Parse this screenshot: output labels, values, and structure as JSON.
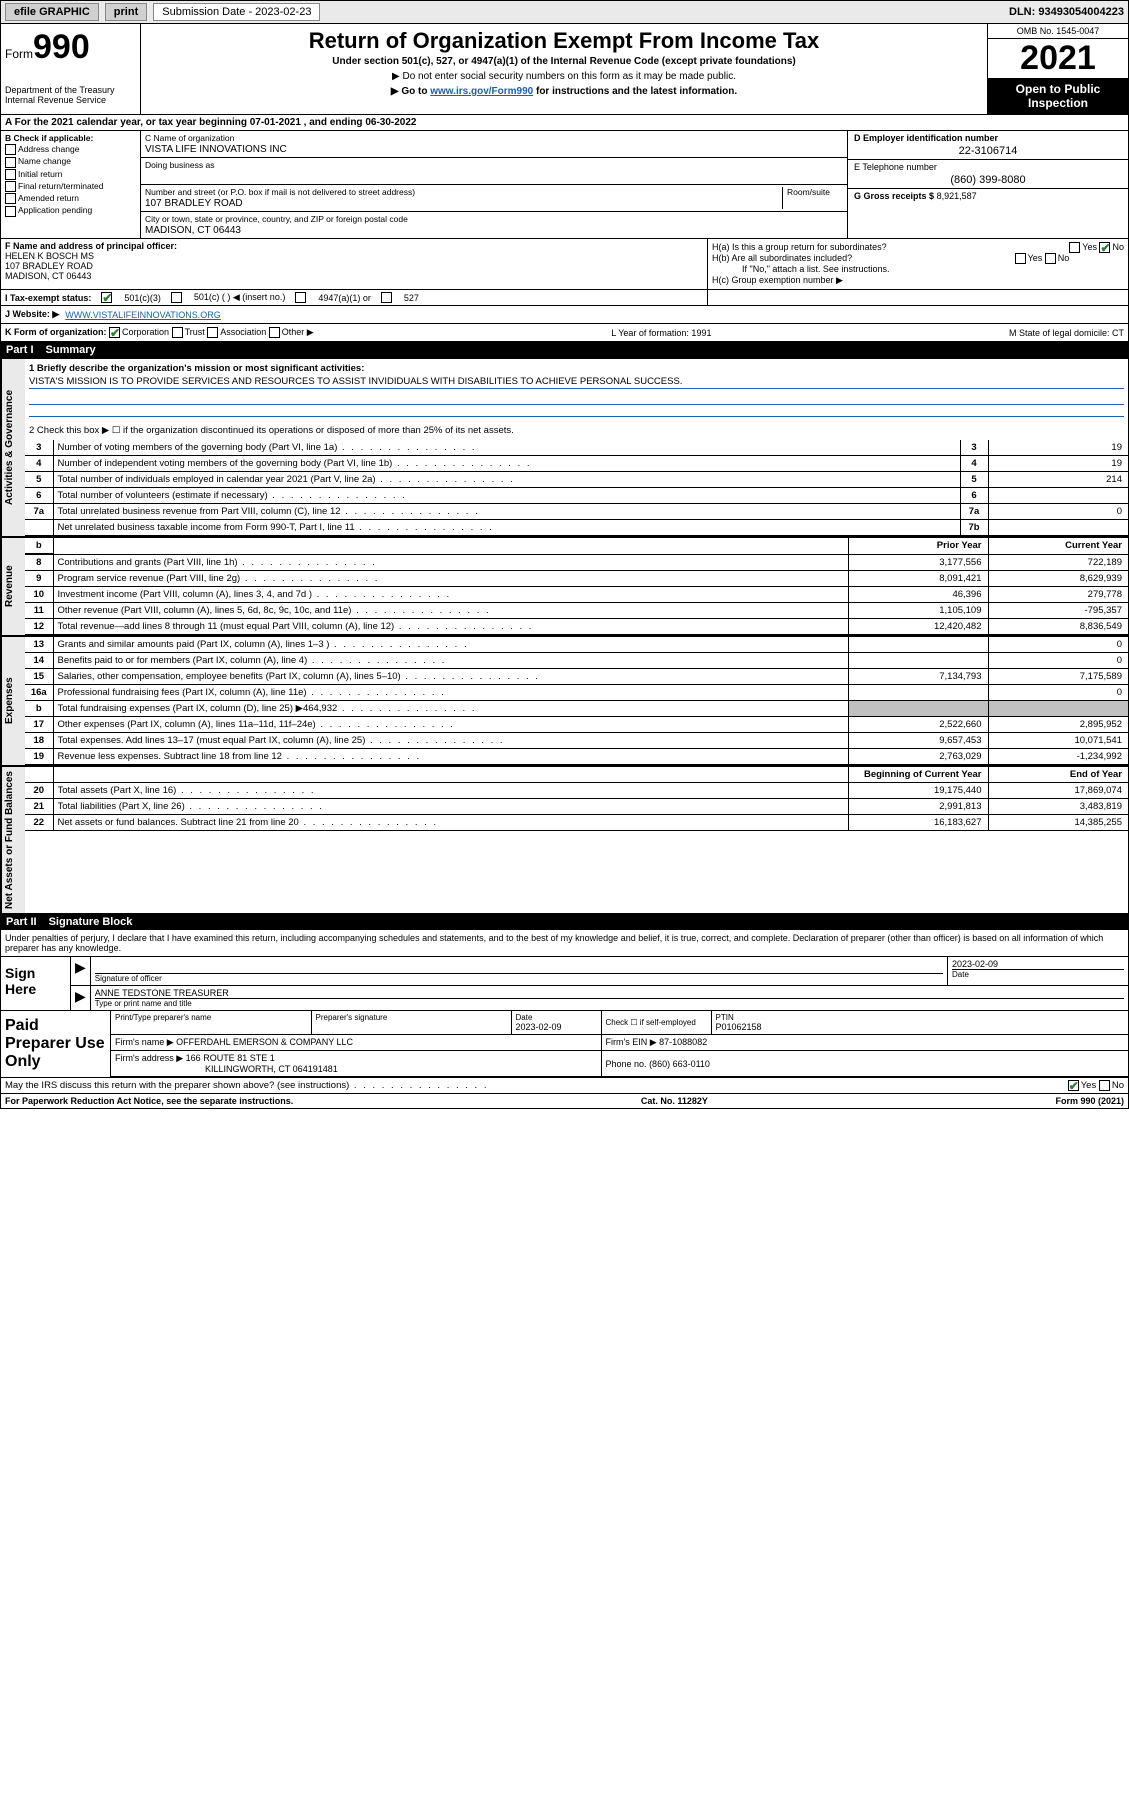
{
  "topbar": {
    "efile": "efile GRAPHIC",
    "print": "print",
    "subdate_label": "Submission Date - 2023-02-23",
    "dln": "DLN: 93493054004223"
  },
  "header": {
    "form_prefix": "Form",
    "form_no": "990",
    "dept": "Department of the Treasury\nInternal Revenue Service",
    "title": "Return of Organization Exempt From Income Tax",
    "subtitle": "Under section 501(c), 527, or 4947(a)(1) of the Internal Revenue Code (except private foundations)",
    "note1": "▶ Do not enter social security numbers on this form as it may be made public.",
    "note2_pre": "▶ Go to ",
    "note2_link": "www.irs.gov/Form990",
    "note2_post": " for instructions and the latest information.",
    "omb": "OMB No. 1545-0047",
    "year": "2021",
    "otp": "Open to Public Inspection"
  },
  "period": {
    "text": "A For the 2021 calendar year, or tax year beginning 07-01-2021   , and ending 06-30-2022"
  },
  "blockB": {
    "hdr": "B Check if applicable:",
    "rows": [
      "Address change",
      "Name change",
      "Initial return",
      "Final return/terminated",
      "Amended return",
      "Application pending"
    ],
    "cname_lbl": "C Name of organization",
    "cname": "VISTA LIFE INNOVATIONS INC",
    "dba_lbl": "Doing business as",
    "street_lbl": "Number and street (or P.O. box if mail is not delivered to street address)",
    "room_lbl": "Room/suite",
    "street": "107 BRADLEY ROAD",
    "city_lbl": "City or town, state or province, country, and ZIP or foreign postal code",
    "city": "MADISON, CT  06443",
    "ein_lbl": "D Employer identification number",
    "ein": "22-3106714",
    "tel_lbl": "E Telephone number",
    "tel": "(860) 399-8080",
    "gross_lbl": "G Gross receipts $",
    "gross": "8,921,587"
  },
  "rowF": {
    "lbl": "F Name and address of principal officer:",
    "name": "HELEN K BOSCH MS",
    "addr1": "107 BRADLEY ROAD",
    "addr2": "MADISON, CT  06443",
    "ha": "H(a)  Is this a group return for subordinates?",
    "ha_yes": "Yes",
    "ha_no": "No",
    "hb": "H(b)  Are all subordinates included?",
    "hb_yes": "Yes",
    "hb_no": "No",
    "hb_note": "If \"No,\" attach a list. See instructions.",
    "hc": "H(c)  Group exemption number ▶"
  },
  "rowI": {
    "lbl": "I   Tax-exempt status:",
    "o1": "501(c)(3)",
    "o2": "501(c) (  ) ◀ (insert no.)",
    "o3": "4947(a)(1) or",
    "o4": "527"
  },
  "rowJ": {
    "lbl": "J   Website: ▶",
    "url": "WWW.VISTALIFEINNOVATIONS.ORG"
  },
  "rowK": {
    "lbl": "K Form of organization:",
    "o1": "Corporation",
    "o2": "Trust",
    "o3": "Association",
    "o4": "Other ▶",
    "l": "L Year of formation: 1991",
    "m": "M State of legal domicile: CT"
  },
  "part1": {
    "hdr_pt": "Part I",
    "hdr_txt": "Summary",
    "side_ag": "Activities & Governance",
    "side_rev": "Revenue",
    "side_exp": "Expenses",
    "side_net": "Net Assets or Fund Balances",
    "briefly_lbl": "1   Briefly describe the organization's mission or most significant activities:",
    "mission": "VISTA'S MISSION IS TO PROVIDE SERVICES AND RESOURCES TO ASSIST INVIDIDUALS WITH DISABILITIES TO ACHIEVE PERSONAL SUCCESS.",
    "line2": "2   Check this box ▶ ☐  if the organization discontinued its operations or disposed of more than 25% of its net assets.",
    "rows_ag": [
      {
        "n": "3",
        "d": "Number of voting members of the governing body (Part VI, line 1a)",
        "k": "3",
        "v": "19"
      },
      {
        "n": "4",
        "d": "Number of independent voting members of the governing body (Part VI, line 1b)",
        "k": "4",
        "v": "19"
      },
      {
        "n": "5",
        "d": "Total number of individuals employed in calendar year 2021 (Part V, line 2a)",
        "k": "5",
        "v": "214"
      },
      {
        "n": "6",
        "d": "Total number of volunteers (estimate if necessary)",
        "k": "6",
        "v": ""
      },
      {
        "n": "7a",
        "d": "Total unrelated business revenue from Part VIII, column (C), line 12",
        "k": "7a",
        "v": "0"
      },
      {
        "n": "",
        "d": "Net unrelated business taxable income from Form 990-T, Part I, line 11",
        "k": "7b",
        "v": ""
      }
    ],
    "col_prior": "Prior Year",
    "col_curr": "Current Year",
    "col_boy": "Beginning of Current Year",
    "col_eoy": "End of Year",
    "rows_rev": [
      {
        "n": "8",
        "d": "Contributions and grants (Part VIII, line 1h)",
        "p": "3,177,556",
        "c": "722,189"
      },
      {
        "n": "9",
        "d": "Program service revenue (Part VIII, line 2g)",
        "p": "8,091,421",
        "c": "8,629,939"
      },
      {
        "n": "10",
        "d": "Investment income (Part VIII, column (A), lines 3, 4, and 7d )",
        "p": "46,396",
        "c": "279,778"
      },
      {
        "n": "11",
        "d": "Other revenue (Part VIII, column (A), lines 5, 6d, 8c, 9c, 10c, and 11e)",
        "p": "1,105,109",
        "c": "-795,357"
      },
      {
        "n": "12",
        "d": "Total revenue—add lines 8 through 11 (must equal Part VIII, column (A), line 12)",
        "p": "12,420,482",
        "c": "8,836,549"
      }
    ],
    "rows_exp": [
      {
        "n": "13",
        "d": "Grants and similar amounts paid (Part IX, column (A), lines 1–3 )",
        "p": "",
        "c": "0"
      },
      {
        "n": "14",
        "d": "Benefits paid to or for members (Part IX, column (A), line 4)",
        "p": "",
        "c": "0"
      },
      {
        "n": "15",
        "d": "Salaries, other compensation, employee benefits (Part IX, column (A), lines 5–10)",
        "p": "7,134,793",
        "c": "7,175,589"
      },
      {
        "n": "16a",
        "d": "Professional fundraising fees (Part IX, column (A), line 11e)",
        "p": "",
        "c": "0"
      },
      {
        "n": "b",
        "d": "Total fundraising expenses (Part IX, column (D), line 25) ▶464,932",
        "p": "grey",
        "c": "grey"
      },
      {
        "n": "17",
        "d": "Other expenses (Part IX, column (A), lines 11a–11d, 11f–24e)",
        "p": "2,522,660",
        "c": "2,895,952"
      },
      {
        "n": "18",
        "d": "Total expenses. Add lines 13–17 (must equal Part IX, column (A), line 25)",
        "p": "9,657,453",
        "c": "10,071,541"
      },
      {
        "n": "19",
        "d": "Revenue less expenses. Subtract line 18 from line 12",
        "p": "2,763,029",
        "c": "-1,234,992"
      }
    ],
    "rows_net": [
      {
        "n": "20",
        "d": "Total assets (Part X, line 16)",
        "p": "19,175,440",
        "c": "17,869,074"
      },
      {
        "n": "21",
        "d": "Total liabilities (Part X, line 26)",
        "p": "2,991,813",
        "c": "3,483,819"
      },
      {
        "n": "22",
        "d": "Net assets or fund balances. Subtract line 21 from line 20",
        "p": "16,183,627",
        "c": "14,385,255"
      }
    ]
  },
  "part2": {
    "hdr_pt": "Part II",
    "hdr_txt": "Signature Block",
    "decl": "Under penalties of perjury, I declare that I have examined this return, including accompanying schedules and statements, and to the best of my knowledge and belief, it is true, correct, and complete. Declaration of preparer (other than officer) is based on all information of which preparer has any knowledge.",
    "sign_here": "Sign Here",
    "sig_of_officer": "Signature of officer",
    "sig_date": "2023-02-09",
    "date_lbl": "Date",
    "officer_name": "ANNE TEDSTONE TREASURER",
    "type_lbl": "Type or print name and title",
    "paid_lbl": "Paid Preparer Use Only",
    "prep_name_lbl": "Print/Type preparer's name",
    "prep_sig_lbl": "Preparer's signature",
    "prep_date_lbl": "Date",
    "prep_date": "2023-02-09",
    "check_lbl": "Check ☐ if self-employed",
    "ptin_lbl": "PTIN",
    "ptin": "P01062158",
    "firm_name_lbl": "Firm's name    ▶",
    "firm_name": "OFFERDAHL EMERSON & COMPANY LLC",
    "firm_ein_lbl": "Firm's EIN ▶",
    "firm_ein": "87-1088082",
    "firm_addr_lbl": "Firm's address ▶",
    "firm_addr1": "166 ROUTE 81 STE 1",
    "firm_addr2": "KILLINGWORTH, CT  064191481",
    "phone_lbl": "Phone no.",
    "phone": "(860) 663-0110",
    "discuss": "May the IRS discuss this return with the preparer shown above? (see instructions)",
    "yes": "Yes",
    "no": "No"
  },
  "footer": {
    "pra": "For Paperwork Reduction Act Notice, see the separate instructions.",
    "cat": "Cat. No. 11282Y",
    "form": "Form 990 (2021)"
  }
}
